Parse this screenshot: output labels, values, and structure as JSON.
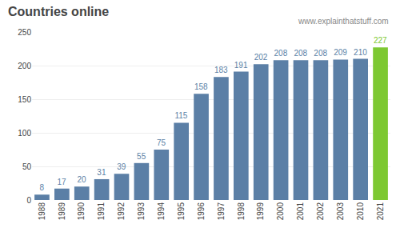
{
  "chart_data": {
    "type": "bar",
    "title": "Countries online",
    "categories": [
      "1988",
      "1989",
      "1990",
      "1991",
      "1992",
      "1993",
      "1994",
      "1995",
      "1996",
      "1997",
      "1998",
      "1999",
      "2000",
      "2001",
      "2002",
      "2003",
      "2010",
      "2021"
    ],
    "values": [
      8,
      17,
      20,
      31,
      39,
      55,
      75,
      115,
      158,
      183,
      191,
      202,
      208,
      208,
      208,
      209,
      210,
      227
    ],
    "colors": [
      "#5b7fa6",
      "#5b7fa6",
      "#5b7fa6",
      "#5b7fa6",
      "#5b7fa6",
      "#5b7fa6",
      "#5b7fa6",
      "#5b7fa6",
      "#5b7fa6",
      "#5b7fa6",
      "#5b7fa6",
      "#5b7fa6",
      "#5b7fa6",
      "#5b7fa6",
      "#5b7fa6",
      "#5b7fa6",
      "#5b7fa6",
      "#7dc832"
    ],
    "ylim": [
      0,
      250
    ],
    "yticks": [
      0,
      50,
      100,
      150,
      200,
      250
    ],
    "grid": true,
    "data_labels": true,
    "annotations": [
      "www.explainthatstuff.com"
    ]
  }
}
